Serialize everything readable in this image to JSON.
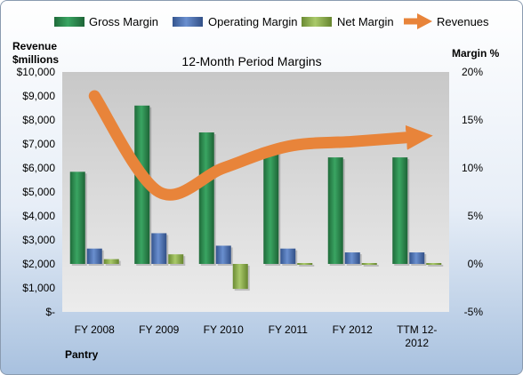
{
  "chart_data": {
    "type": "bar",
    "title": "12-Month Period Margins",
    "categories": [
      "FY 2008",
      "FY 2009",
      "FY 2010",
      "FY 2011",
      "FY 2012",
      "TTM 12-2012"
    ],
    "series": [
      {
        "name": "Gross Margin",
        "axis": "right",
        "values": [
          9.6,
          16.5,
          13.7,
          11.8,
          11.1,
          11.1
        ]
      },
      {
        "name": "Operating Margin",
        "axis": "right",
        "values": [
          1.6,
          3.2,
          1.9,
          1.6,
          1.2,
          1.2
        ]
      },
      {
        "name": "Net Margin",
        "axis": "right",
        "values": [
          0.5,
          1.0,
          -2.6,
          0.1,
          0.05,
          0.05
        ]
      },
      {
        "name": "Revenues",
        "type": "line",
        "axis": "left",
        "values": [
          9000,
          5000,
          6000,
          6900,
          7100,
          7300
        ]
      }
    ],
    "y_left": {
      "label_line1": "Revenue",
      "label_line2": "$millions",
      "min": 0,
      "max": 10000,
      "step": 1000,
      "tick_labels": [
        "$-",
        "$1,000",
        "$2,000",
        "$3,000",
        "$4,000",
        "$5,000",
        "$6,000",
        "$7,000",
        "$8,000",
        "$9,000",
        "$10,000"
      ]
    },
    "y_right": {
      "label": "Margin %",
      "min": -5,
      "max": 20,
      "step": 5,
      "tick_labels": [
        "-5%",
        "0%",
        "5%",
        "10%",
        "15%",
        "20%"
      ]
    },
    "legend_position": "top",
    "grid": false,
    "colors": {
      "Gross Margin": "#2e8b4f",
      "Operating Margin": "#4a6fb0",
      "Net Margin": "#8bae4a",
      "Revenues": "#e8843a"
    }
  },
  "company": "Pantry"
}
